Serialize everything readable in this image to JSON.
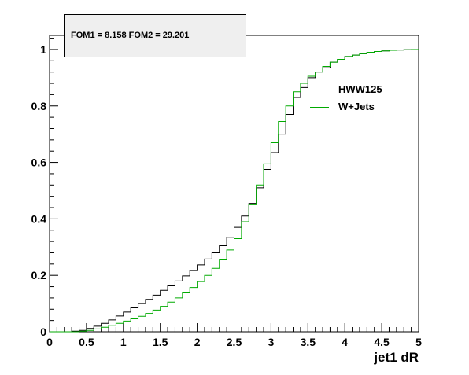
{
  "stats_box": {
    "text": "FOM1 = 8.158 FOM2 = 29.201"
  },
  "colors": {
    "series_hww125": "#000000",
    "series_wjets": "#00aa00",
    "background": "#ffffff",
    "stats_fill": "#efefef"
  },
  "chart_data": {
    "type": "line",
    "style": "step",
    "title": "",
    "xlabel": "jet1 dR",
    "ylabel": "",
    "xlim": [
      0,
      5
    ],
    "ylim": [
      0,
      1.05
    ],
    "grid": false,
    "legend_position": "top-right",
    "x_ticks": [
      {
        "value": 0,
        "label": "0"
      },
      {
        "value": 0.5,
        "label": "0.5"
      },
      {
        "value": 1,
        "label": "1"
      },
      {
        "value": 1.5,
        "label": "1.5"
      },
      {
        "value": 2,
        "label": "2"
      },
      {
        "value": 2.5,
        "label": "2.5"
      },
      {
        "value": 3,
        "label": "3"
      },
      {
        "value": 3.5,
        "label": "3.5"
      },
      {
        "value": 4,
        "label": "4"
      },
      {
        "value": 4.5,
        "label": "4.5"
      },
      {
        "value": 5,
        "label": "5"
      }
    ],
    "y_ticks": [
      {
        "value": 0,
        "label": "0"
      },
      {
        "value": 0.2,
        "label": "0.2"
      },
      {
        "value": 0.4,
        "label": "0.4"
      },
      {
        "value": 0.6,
        "label": "0.6"
      },
      {
        "value": 0.8,
        "label": "0.8"
      },
      {
        "value": 1,
        "label": "1"
      }
    ],
    "bin_edges": [
      0,
      0.1,
      0.2,
      0.3,
      0.4,
      0.5,
      0.6,
      0.7,
      0.8,
      0.9,
      1.0,
      1.1,
      1.2,
      1.3,
      1.4,
      1.5,
      1.6,
      1.7,
      1.8,
      1.9,
      2.0,
      2.1,
      2.2,
      2.3,
      2.4,
      2.5,
      2.6,
      2.7,
      2.8,
      2.9,
      3.0,
      3.1,
      3.2,
      3.3,
      3.4,
      3.5,
      3.6,
      3.7,
      3.8,
      3.9,
      4.0,
      4.1,
      4.2,
      4.3,
      4.4,
      4.5,
      4.6,
      4.7,
      4.8,
      4.9,
      5.0
    ],
    "series": [
      {
        "name": "HWW125",
        "values": [
          0,
          0,
          0,
          0.002,
          0.005,
          0.012,
          0.02,
          0.03,
          0.042,
          0.056,
          0.07,
          0.085,
          0.1,
          0.115,
          0.13,
          0.147,
          0.163,
          0.18,
          0.198,
          0.217,
          0.237,
          0.258,
          0.28,
          0.305,
          0.335,
          0.37,
          0.41,
          0.455,
          0.51,
          0.575,
          0.635,
          0.7,
          0.77,
          0.83,
          0.865,
          0.9,
          0.92,
          0.935,
          0.955,
          0.965,
          0.975,
          0.98,
          0.985,
          0.99,
          0.993,
          0.995,
          0.997,
          0.998,
          0.999,
          1.0
        ]
      },
      {
        "name": "W+Jets",
        "values": [
          0,
          0,
          0,
          0,
          0.002,
          0.005,
          0.01,
          0.016,
          0.023,
          0.03,
          0.038,
          0.046,
          0.055,
          0.065,
          0.077,
          0.09,
          0.105,
          0.12,
          0.138,
          0.157,
          0.178,
          0.2,
          0.225,
          0.255,
          0.29,
          0.33,
          0.39,
          0.45,
          0.52,
          0.595,
          0.67,
          0.745,
          0.8,
          0.85,
          0.88,
          0.905,
          0.92,
          0.94,
          0.955,
          0.965,
          0.975,
          0.98,
          0.985,
          0.99,
          0.993,
          0.995,
          0.997,
          0.998,
          0.999,
          1.0
        ]
      }
    ]
  }
}
